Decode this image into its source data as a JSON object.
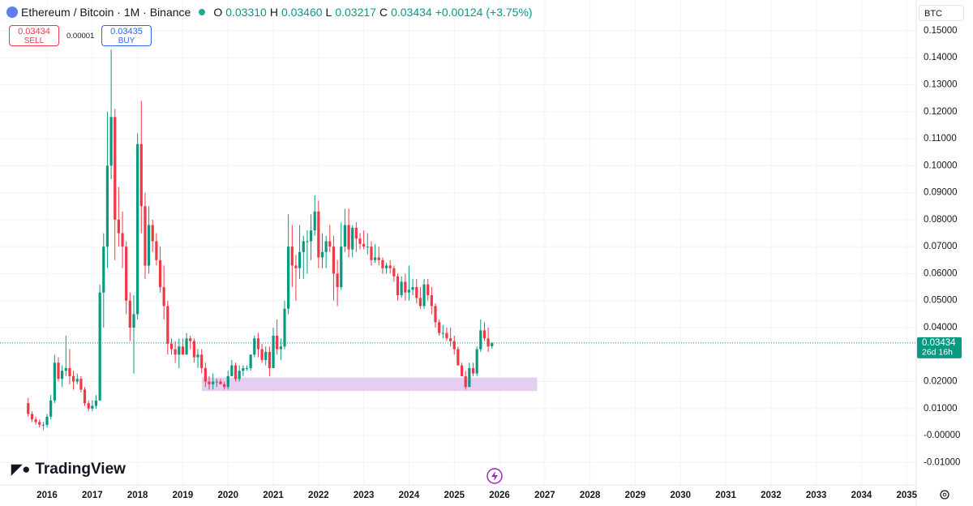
{
  "header": {
    "symbol": "Ethereum / Bitcoin · 1M · Binance",
    "o_label": "O",
    "o": "0.03310",
    "h_label": "H",
    "h": "0.03460",
    "l_label": "L",
    "l": "0.03217",
    "c_label": "C",
    "c": "0.03434",
    "change": "+0.00124 (+3.75%)",
    "currency": "BTC"
  },
  "trade": {
    "sell_price": "0.03434",
    "sell": "SELL",
    "spread": "0.00001",
    "buy_price": "0.03435",
    "buy": "BUY"
  },
  "brand": "TradingView",
  "chart_data": {
    "type": "candlestick",
    "up_color": "#089981",
    "down_color": "#f23645",
    "grid": true,
    "price_tag": {
      "price": "0.03434",
      "countdown": "26d 16h"
    },
    "zone": {
      "x": [
        2019.42,
        2026.83
      ],
      "y": [
        0.0165,
        0.0215
      ],
      "color": "#e1c6ee"
    },
    "xlim": [
      2014.96,
      2035.21
    ],
    "xticks": [
      2016,
      2017,
      2018,
      2019,
      2020,
      2021,
      2022,
      2023,
      2024,
      2025,
      2026,
      2027,
      2028,
      2029,
      2030,
      2031,
      2032,
      2033,
      2034,
      2035
    ],
    "ylim": [
      -0.0183,
      0.1614
    ],
    "yticks": [
      {
        "value": 0.15,
        "label": "0.15000"
      },
      {
        "value": 0.14,
        "label": "0.14000"
      },
      {
        "value": 0.13,
        "label": "0.13000"
      },
      {
        "value": 0.12,
        "label": "0.12000"
      },
      {
        "value": 0.11,
        "label": "0.11000"
      },
      {
        "value": 0.1,
        "label": "0.10000"
      },
      {
        "value": 0.09,
        "label": "0.09000"
      },
      {
        "value": 0.08,
        "label": "0.08000"
      },
      {
        "value": 0.07,
        "label": "0.07000"
      },
      {
        "value": 0.06,
        "label": "0.06000"
      },
      {
        "value": 0.05,
        "label": "0.05000"
      },
      {
        "value": 0.04,
        "label": "0.04000"
      },
      {
        "value": 0.02,
        "label": "0.02000"
      },
      {
        "value": 0.01,
        "label": "0.01000"
      },
      {
        "value": 0,
        "label": "-0.00000"
      },
      {
        "value": -0.01,
        "label": "-0.01000"
      }
    ],
    "x": [
      2015.583,
      2015.667,
      2015.75,
      2015.833,
      2015.917,
      2016,
      2016.083,
      2016.167,
      2016.25,
      2016.333,
      2016.417,
      2016.5,
      2016.583,
      2016.667,
      2016.75,
      2016.833,
      2016.917,
      2017,
      2017.083,
      2017.167,
      2017.25,
      2017.333,
      2017.417,
      2017.5,
      2017.583,
      2017.667,
      2017.75,
      2017.833,
      2017.917,
      2018,
      2018.083,
      2018.167,
      2018.25,
      2018.333,
      2018.417,
      2018.5,
      2018.583,
      2018.667,
      2018.75,
      2018.833,
      2018.917,
      2019,
      2019.083,
      2019.167,
      2019.25,
      2019.333,
      2019.417,
      2019.5,
      2019.583,
      2019.667,
      2019.75,
      2019.833,
      2019.917,
      2020,
      2020.083,
      2020.167,
      2020.25,
      2020.333,
      2020.417,
      2020.5,
      2020.583,
      2020.667,
      2020.75,
      2020.833,
      2020.917,
      2021,
      2021.083,
      2021.167,
      2021.25,
      2021.333,
      2021.417,
      2021.5,
      2021.583,
      2021.667,
      2021.75,
      2021.833,
      2021.917,
      2022,
      2022.083,
      2022.167,
      2022.25,
      2022.333,
      2022.417,
      2022.5,
      2022.583,
      2022.667,
      2022.75,
      2022.833,
      2022.917,
      2023,
      2023.083,
      2023.167,
      2023.25,
      2023.333,
      2023.417,
      2023.5,
      2023.583,
      2023.667,
      2023.75,
      2023.833,
      2023.917,
      2024,
      2024.083,
      2024.167,
      2024.25,
      2024.333,
      2024.417,
      2024.5,
      2024.583,
      2024.667,
      2024.75,
      2024.833,
      2024.917,
      2025,
      2025.083,
      2025.167,
      2025.25,
      2025.333,
      2025.417,
      2025.5,
      2025.583,
      2025.667,
      2025.75,
      2025.833
    ],
    "open": [
      0.012,
      0.008,
      0.006,
      0.005,
      0.004,
      0.004,
      0.007,
      0.013,
      0.027,
      0.021,
      0.024,
      0.025,
      0.022,
      0.02,
      0.021,
      0.017,
      0.012,
      0.01,
      0.011,
      0.013,
      0.053,
      0.07,
      0.1,
      0.118,
      0.08,
      0.075,
      0.07,
      0.05,
      0.04,
      0.045,
      0.108,
      0.085,
      0.063,
      0.078,
      0.072,
      0.065,
      0.055,
      0.048,
      0.034,
      0.032,
      0.03,
      0.033,
      0.03,
      0.036,
      0.035,
      0.029,
      0.03,
      0.025,
      0.02,
      0.019,
      0.02,
      0.02,
      0.019,
      0.018,
      0.022,
      0.026,
      0.021,
      0.024,
      0.025,
      0.025,
      0.03,
      0.036,
      0.032,
      0.028,
      0.031,
      0.025,
      0.037,
      0.032,
      0.033,
      0.047,
      0.07,
      0.063,
      0.062,
      0.068,
      0.072,
      0.072,
      0.076,
      0.083,
      0.066,
      0.068,
      0.072,
      0.07,
      0.06,
      0.055,
      0.07,
      0.078,
      0.069,
      0.077,
      0.073,
      0.071,
      0.07,
      0.07,
      0.065,
      0.066,
      0.065,
      0.062,
      0.063,
      0.062,
      0.059,
      0.052,
      0.057,
      0.053,
      0.054,
      0.055,
      0.051,
      0.048,
      0.056,
      0.052,
      0.048,
      0.042,
      0.038,
      0.038,
      0.036,
      0.035,
      0.032,
      0.026,
      0.022,
      0.018,
      0.025,
      0.023,
      0.032,
      0.039,
      0.036,
      0.0331
    ],
    "high": [
      0.014,
      0.009,
      0.007,
      0.006,
      0.005,
      0.008,
      0.015,
      0.03,
      0.029,
      0.026,
      0.037,
      0.032,
      0.024,
      0.023,
      0.022,
      0.018,
      0.013,
      0.013,
      0.015,
      0.056,
      0.075,
      0.12,
      0.143,
      0.121,
      0.092,
      0.083,
      0.072,
      0.053,
      0.052,
      0.112,
      0.124,
      0.09,
      0.085,
      0.08,
      0.075,
      0.07,
      0.063,
      0.05,
      0.036,
      0.035,
      0.036,
      0.036,
      0.038,
      0.037,
      0.036,
      0.032,
      0.032,
      0.027,
      0.022,
      0.023,
      0.021,
      0.021,
      0.02,
      0.024,
      0.028,
      0.027,
      0.026,
      0.026,
      0.026,
      0.03,
      0.037,
      0.038,
      0.034,
      0.033,
      0.033,
      0.04,
      0.043,
      0.036,
      0.05,
      0.082,
      0.078,
      0.067,
      0.078,
      0.074,
      0.076,
      0.082,
      0.089,
      0.087,
      0.075,
      0.074,
      0.078,
      0.074,
      0.065,
      0.079,
      0.084,
      0.084,
      0.078,
      0.079,
      0.075,
      0.076,
      0.075,
      0.072,
      0.071,
      0.07,
      0.066,
      0.064,
      0.065,
      0.063,
      0.06,
      0.059,
      0.06,
      0.063,
      0.058,
      0.058,
      0.055,
      0.058,
      0.058,
      0.055,
      0.049,
      0.043,
      0.041,
      0.04,
      0.04,
      0.037,
      0.033,
      0.027,
      0.024,
      0.027,
      0.027,
      0.033,
      0.043,
      0.042,
      0.04,
      0.0346
    ],
    "low": [
      0.007,
      0.005,
      0.004,
      0.003,
      0.002,
      0.003,
      0.006,
      0.012,
      0.02,
      0.018,
      0.022,
      0.019,
      0.017,
      0.019,
      0.016,
      0.011,
      0.009,
      0.009,
      0.01,
      0.013,
      0.04,
      0.062,
      0.095,
      0.065,
      0.07,
      0.062,
      0.045,
      0.035,
      0.023,
      0.043,
      0.075,
      0.058,
      0.06,
      0.068,
      0.063,
      0.053,
      0.043,
      0.03,
      0.03,
      0.027,
      0.025,
      0.03,
      0.03,
      0.032,
      0.027,
      0.025,
      0.023,
      0.018,
      0.017,
      0.017,
      0.018,
      0.019,
      0.017,
      0.017,
      0.022,
      0.02,
      0.02,
      0.022,
      0.024,
      0.024,
      0.029,
      0.029,
      0.027,
      0.026,
      0.022,
      0.025,
      0.03,
      0.028,
      0.032,
      0.045,
      0.055,
      0.05,
      0.058,
      0.058,
      0.06,
      0.065,
      0.074,
      0.062,
      0.062,
      0.062,
      0.068,
      0.05,
      0.048,
      0.054,
      0.068,
      0.066,
      0.066,
      0.068,
      0.069,
      0.069,
      0.067,
      0.063,
      0.064,
      0.063,
      0.06,
      0.06,
      0.06,
      0.057,
      0.05,
      0.051,
      0.05,
      0.05,
      0.052,
      0.049,
      0.047,
      0.047,
      0.05,
      0.045,
      0.04,
      0.037,
      0.036,
      0.035,
      0.033,
      0.03,
      0.026,
      0.022,
      0.017,
      0.018,
      0.022,
      0.022,
      0.031,
      0.035,
      0.031,
      0.03217
    ],
    "close": [
      0.008,
      0.006,
      0.005,
      0.004,
      0.004,
      0.007,
      0.013,
      0.027,
      0.021,
      0.024,
      0.025,
      0.022,
      0.02,
      0.021,
      0.017,
      0.012,
      0.01,
      0.011,
      0.013,
      0.053,
      0.07,
      0.1,
      0.118,
      0.08,
      0.075,
      0.07,
      0.05,
      0.04,
      0.045,
      0.108,
      0.085,
      0.063,
      0.078,
      0.072,
      0.065,
      0.055,
      0.048,
      0.034,
      0.032,
      0.03,
      0.033,
      0.03,
      0.036,
      0.035,
      0.029,
      0.03,
      0.025,
      0.02,
      0.019,
      0.02,
      0.02,
      0.019,
      0.018,
      0.022,
      0.026,
      0.021,
      0.024,
      0.025,
      0.025,
      0.03,
      0.036,
      0.032,
      0.028,
      0.031,
      0.025,
      0.037,
      0.032,
      0.033,
      0.047,
      0.07,
      0.063,
      0.062,
      0.068,
      0.072,
      0.072,
      0.076,
      0.083,
      0.066,
      0.068,
      0.072,
      0.07,
      0.06,
      0.055,
      0.07,
      0.078,
      0.069,
      0.077,
      0.073,
      0.071,
      0.07,
      0.07,
      0.065,
      0.066,
      0.065,
      0.062,
      0.063,
      0.062,
      0.059,
      0.052,
      0.057,
      0.053,
      0.054,
      0.055,
      0.051,
      0.048,
      0.056,
      0.052,
      0.048,
      0.042,
      0.038,
      0.038,
      0.036,
      0.035,
      0.032,
      0.026,
      0.022,
      0.018,
      0.025,
      0.023,
      0.032,
      0.039,
      0.036,
      0.033,
      0.03434
    ]
  }
}
